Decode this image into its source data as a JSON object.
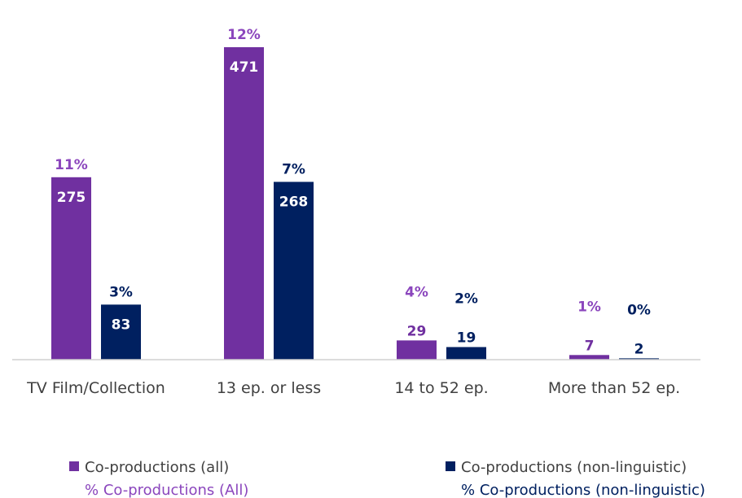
{
  "chart_data": {
    "type": "bar",
    "title": "",
    "xlabel": "",
    "ylabel": "",
    "categories": [
      "TV Film/Collection",
      "13 ep. or less",
      "14 to 52 ep.",
      "More than 52 ep."
    ],
    "series": [
      {
        "name": "Co-productions (all)",
        "values": [
          275,
          471,
          29,
          7
        ],
        "percent_name": "% Co-productions (All)",
        "percent_labels": [
          "11%",
          "12%",
          "4%",
          "1%"
        ],
        "color": "#7030a0"
      },
      {
        "name": "Co-productions (non-linguistic)",
        "values": [
          83,
          268,
          19,
          2
        ],
        "percent_name": "% Co-productions (non-linguistic)",
        "percent_labels": [
          "3%",
          "7%",
          "2%",
          "0%"
        ],
        "color": "#002060"
      }
    ],
    "ylim": [
      0,
      471
    ],
    "grid": false,
    "legend_position": "bottom"
  }
}
